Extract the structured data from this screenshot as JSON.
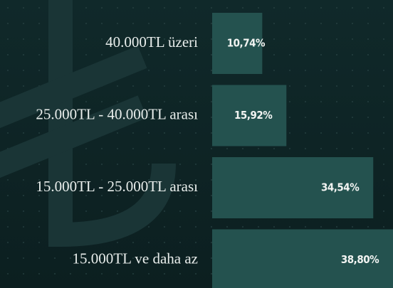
{
  "chart_data": {
    "type": "bar",
    "orientation": "horizontal",
    "categories": [
      "40.000TL üzeri",
      "25.000TL - 40.000TL arası",
      "15.000TL - 25.000TL arası",
      "15.000TL ve daha az"
    ],
    "values": [
      10.74,
      15.92,
      34.54,
      38.8
    ],
    "value_labels": [
      "10,74%",
      "15,92%",
      "34,54%",
      "38,80%"
    ],
    "color": "#24524f"
  }
}
